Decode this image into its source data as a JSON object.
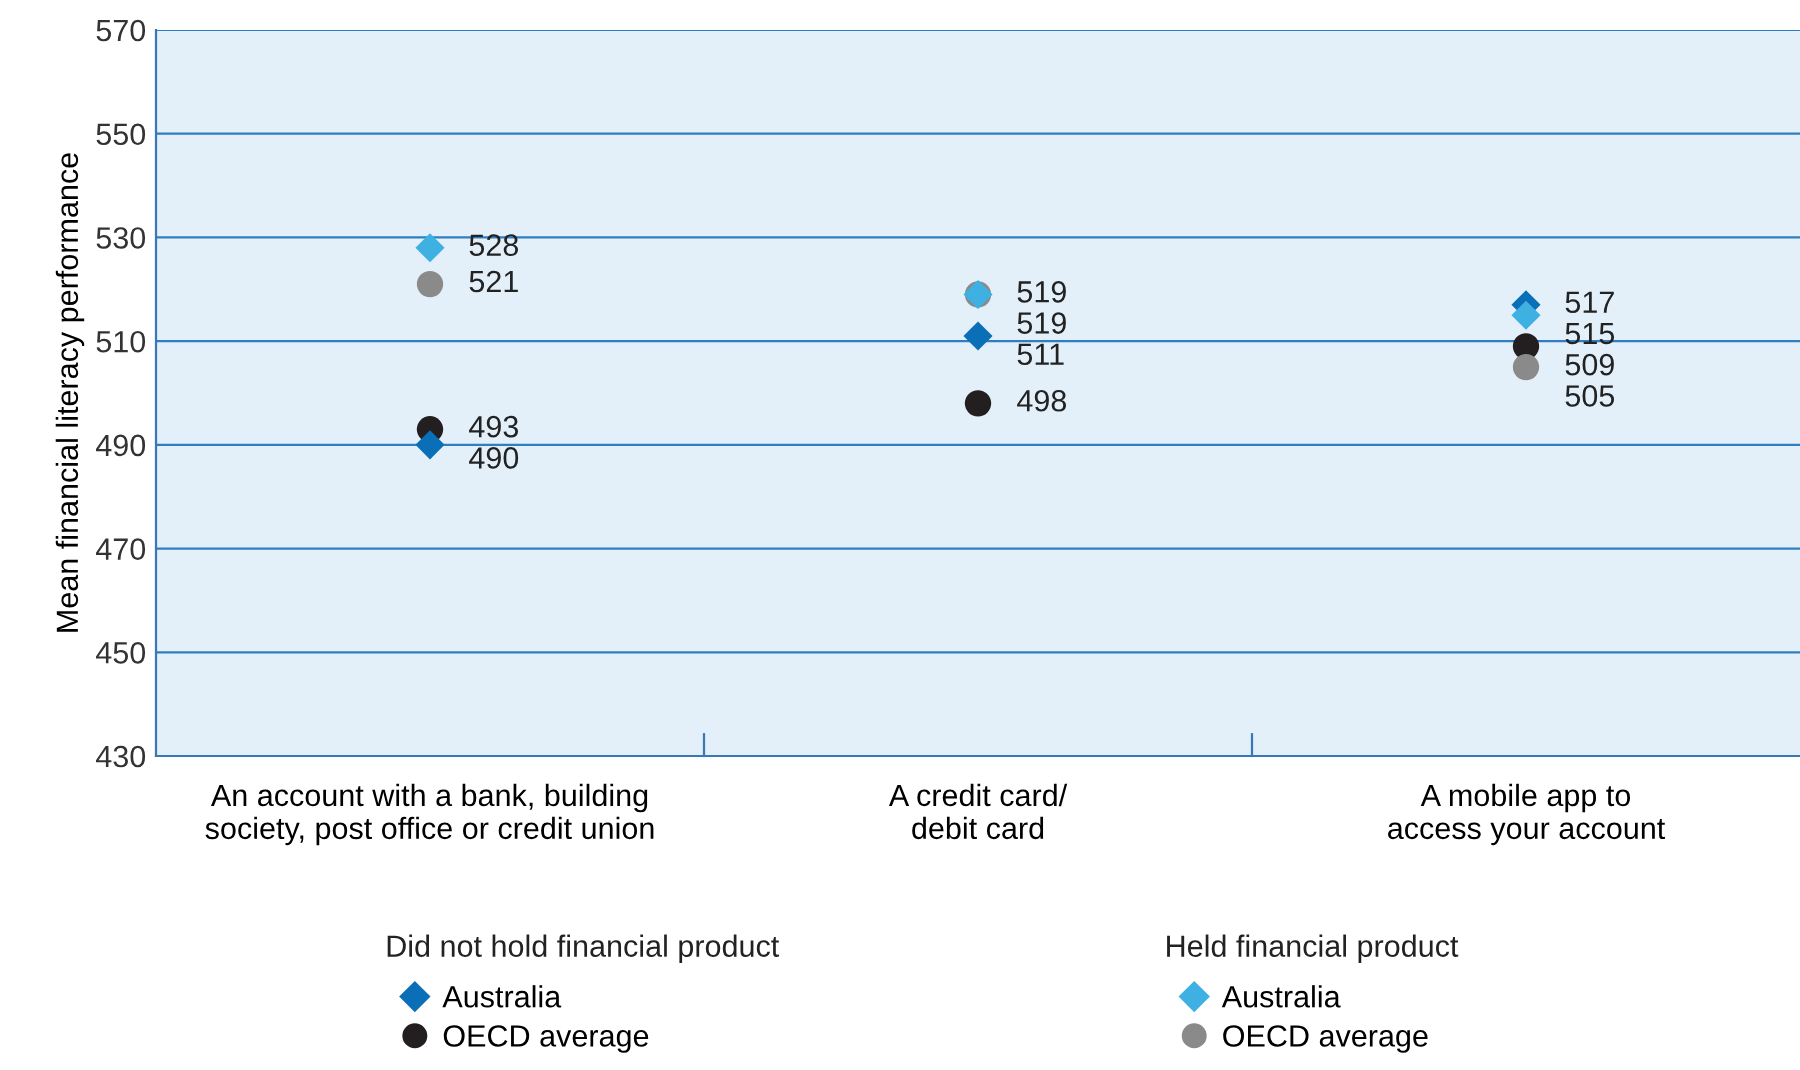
{
  "chart_data": {
    "type": "scatter",
    "ylabel": "Mean financial literacy performance",
    "categories": [
      "An account with a bank, building\nsociety, post office or credit union",
      "A credit card/\ndebit card",
      "A mobile app to\naccess your account"
    ],
    "series": [
      {
        "name": "Australia",
        "color": "#0b6fb8",
        "marker": "diamond",
        "values": [
          490,
          511,
          517
        ]
      },
      {
        "name": "OECD average",
        "color": "#231f20",
        "marker": "circle",
        "values": [
          493,
          498,
          509
        ]
      },
      {
        "name": "Australia",
        "color": "#3fb0e2",
        "marker": "diamond",
        "values": [
          528,
          519,
          515
        ]
      },
      {
        "name": "OECD average",
        "color": "#8a8a8a",
        "marker": "circle",
        "values": [
          521,
          519,
          505
        ]
      }
    ],
    "annotations": [
      "Did not hold financial product",
      "Held financial product"
    ],
    "ylim": [
      430,
      570
    ],
    "yticks": [
      430,
      450,
      470,
      490,
      510,
      530,
      550,
      570
    ],
    "grid": "y",
    "data_labels": true,
    "legend": "bottom"
  }
}
